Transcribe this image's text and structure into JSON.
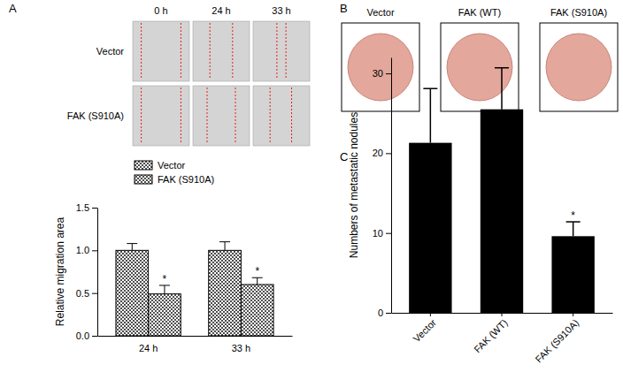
{
  "panel_labels": [
    "A",
    "B",
    "C"
  ],
  "wound_healing": {
    "times": [
      "0 h",
      "24 h",
      "33 h"
    ],
    "groups": [
      "Vector",
      "FAK (S910A)"
    ]
  },
  "lung_photos": {
    "groups": [
      "Vector",
      "FAK (WT)",
      "FAK (S910A)"
    ]
  },
  "chart_data": [
    {
      "type": "bar",
      "y_label": "Relative migration area",
      "categories": [
        "24 h",
        "33 h"
      ],
      "series": [
        {
          "name": "Vector",
          "color": "#4d4d4d",
          "values": [
            1.0,
            1.0
          ],
          "errors": [
            0.08,
            0.1
          ]
        },
        {
          "name": "FAK (S910A)",
          "color": "#262626",
          "values": [
            0.49,
            0.6
          ],
          "errors": [
            0.1,
            0.08
          ],
          "annotations": [
            "*",
            "*"
          ]
        }
      ],
      "ylim": [
        0,
        1.5
      ],
      "yticks": [
        {
          "value": 0,
          "label": "0.0"
        },
        0.5,
        {
          "value": 1,
          "label": "1.0"
        },
        1.5
      ],
      "legend": "top-left"
    },
    {
      "type": "bar",
      "y_label": "Numbers of metastatic nodules",
      "categories": [
        "Vector",
        "FAK (WT)",
        "FAK (S910A)"
      ],
      "values": [
        21.3,
        25.5,
        9.6
      ],
      "errors": [
        6.8,
        5.2,
        1.8
      ],
      "annotations": [
        null,
        null,
        "*"
      ],
      "color": "#000000",
      "ylim": [
        0,
        32
      ],
      "yticks": [
        0,
        10,
        20,
        30
      ]
    }
  ]
}
